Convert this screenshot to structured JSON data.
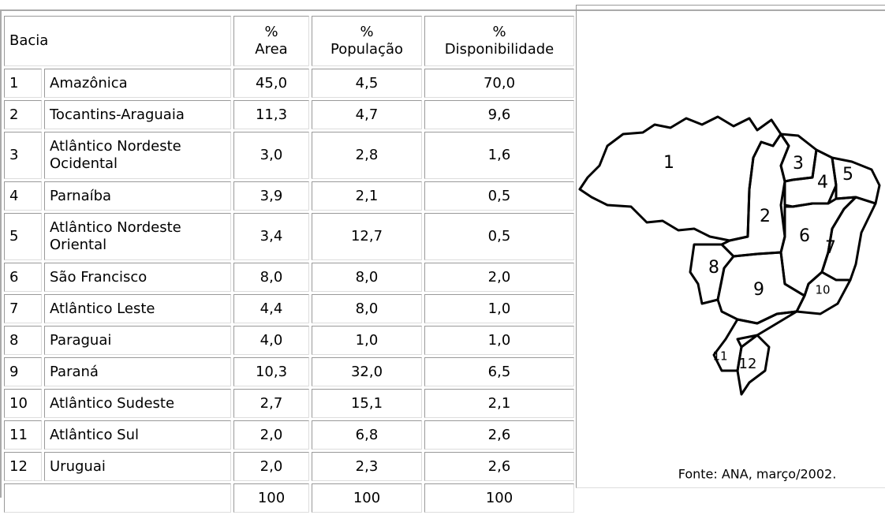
{
  "table": {
    "header": [
      "Bacia",
      "%\nArea",
      "%\nPopulação",
      "%\nDisponibilidade"
    ],
    "rows": [
      [
        "1",
        "Amazônica",
        "45,0",
        "4,5",
        "70,0"
      ],
      [
        "2",
        "Tocantins-Araguaia",
        "11,3",
        "4,7",
        "9,6"
      ],
      [
        "3",
        "Atlântico Nordeste\nOcidental",
        "3,0",
        "2,8",
        "1,6"
      ],
      [
        "4",
        "Parnaíba",
        "3,9",
        "2,1",
        "0,5"
      ],
      [
        "5",
        "Atlântico Nordeste\nOriental",
        "3,4",
        "12,7",
        "0,5"
      ],
      [
        "6",
        "São Francisco",
        "8,0",
        "8,0",
        "2,0"
      ],
      [
        "7",
        "Atlântico Leste",
        "4,4",
        "8,0",
        "1,0"
      ],
      [
        "8",
        "Paraguai",
        "4,0",
        "1,0",
        "1,0"
      ],
      [
        "9",
        "Paraná",
        "10,3",
        "32,0",
        "6,5"
      ],
      [
        "10",
        "Atlântico Sudeste",
        "2,7",
        "15,1",
        "2,1"
      ],
      [
        "11",
        "Atlântico Sul",
        "2,0",
        "6,8",
        "2,6"
      ],
      [
        "12",
        "Uruguai",
        "2,0",
        "2,3",
        "2,6"
      ]
    ],
    "total": [
      "100",
      "100",
      "100"
    ]
  },
  "map": {
    "labels": [
      "1",
      "2",
      "3",
      "4",
      "5",
      "6",
      "7",
      "8",
      "9",
      "10",
      "11",
      "12"
    ],
    "source": "Fonte: ANA, março/2002."
  }
}
